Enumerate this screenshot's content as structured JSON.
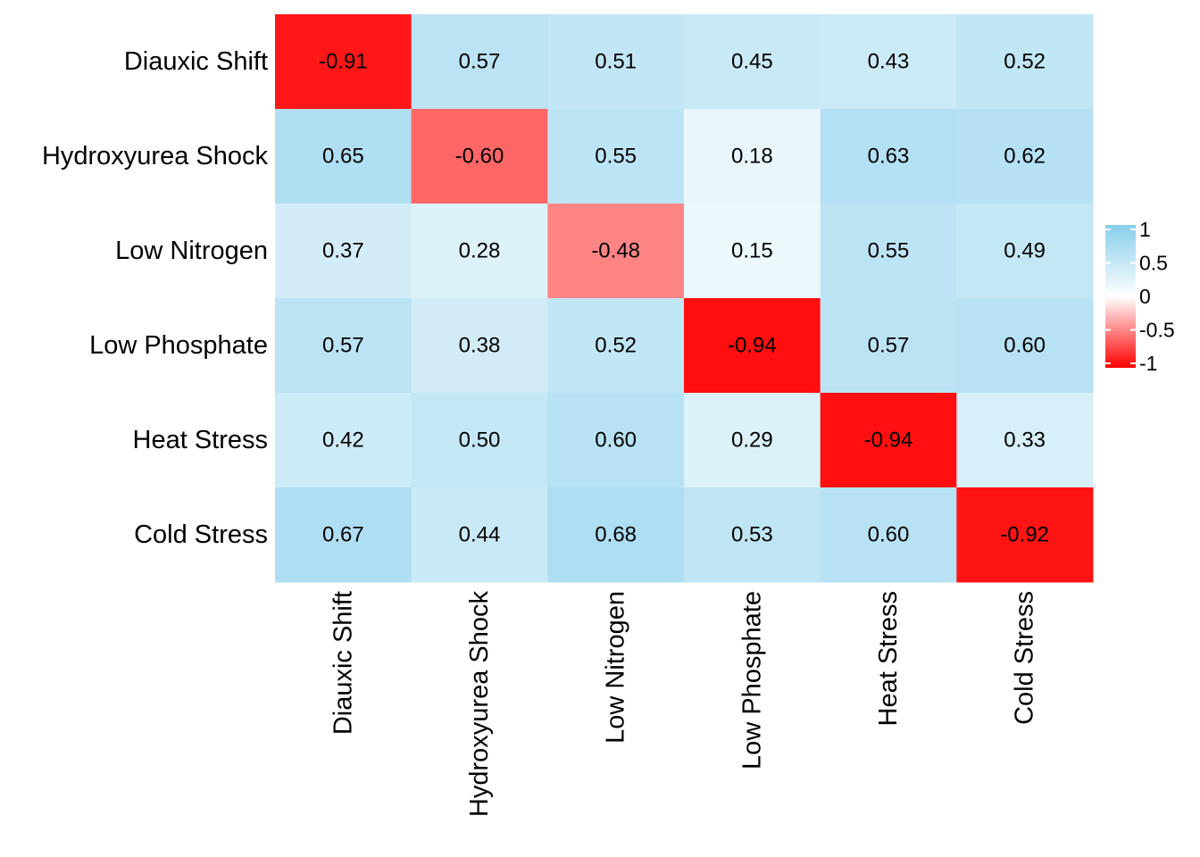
{
  "chart_data": {
    "type": "heatmap",
    "title": "",
    "xlabel": "",
    "ylabel": "",
    "rows": [
      "Diauxic Shift",
      "Hydroxyurea Shock",
      "Low Nitrogen",
      "Low Phosphate",
      "Heat Stress",
      "Cold Stress"
    ],
    "columns": [
      "Diauxic Shift",
      "Hydroxyurea Shock",
      "Low Nitrogen",
      "Low Phosphate",
      "Heat Stress",
      "Cold Stress"
    ],
    "values": [
      [
        -0.91,
        0.57,
        0.51,
        0.45,
        0.43,
        0.52
      ],
      [
        0.65,
        -0.6,
        0.55,
        0.18,
        0.63,
        0.62
      ],
      [
        0.37,
        0.28,
        -0.48,
        0.15,
        0.55,
        0.49
      ],
      [
        0.57,
        0.38,
        0.52,
        -0.94,
        0.57,
        0.6
      ],
      [
        0.42,
        0.5,
        0.6,
        0.29,
        -0.94,
        0.33
      ],
      [
        0.67,
        0.44,
        0.68,
        0.53,
        0.6,
        -0.92
      ]
    ],
    "cell_labels": [
      [
        "-0.91",
        "0.57",
        "0.51",
        "0.45",
        "0.43",
        "0.52"
      ],
      [
        "0.65",
        "-0.60",
        "0.55",
        "0.18",
        "0.63",
        "0.62"
      ],
      [
        "0.37",
        "0.28",
        "-0.48",
        "0.15",
        "0.55",
        "0.49"
      ],
      [
        "0.57",
        "0.38",
        "0.52",
        "-0.94",
        "0.57",
        "0.60"
      ],
      [
        "0.42",
        "0.50",
        "0.60",
        "0.29",
        "-0.94",
        "0.33"
      ],
      [
        "0.67",
        "0.44",
        "0.68",
        "0.53",
        "0.60",
        "-0.92"
      ]
    ],
    "color_scale": {
      "range": [
        -1,
        1
      ],
      "low_color": "#ff0000",
      "mid_color": "#ffffff",
      "high_color": "#87ceeb",
      "ticks": [
        1,
        0.5,
        0,
        -0.5,
        -1
      ],
      "tick_labels": [
        "1",
        "0.5",
        "0",
        "-0.5",
        "-1"
      ]
    },
    "legend_position": "right",
    "grid": false
  }
}
